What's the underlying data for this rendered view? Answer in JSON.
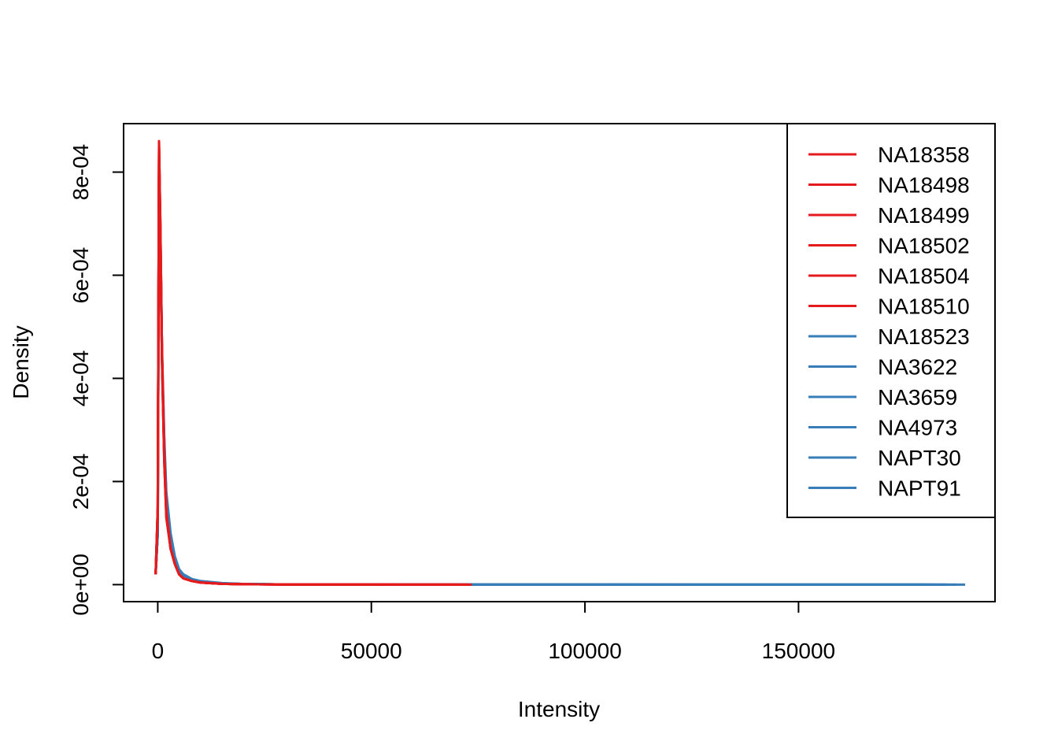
{
  "chart_data": {
    "type": "line",
    "title": "",
    "xlabel": "Intensity",
    "ylabel": "Density",
    "xlim": [
      -8000,
      196000
    ],
    "ylim": [
      -3.3e-05,
      0.000894
    ],
    "x_ticks": [
      0,
      50000,
      100000,
      150000
    ],
    "x_tick_labels": [
      "0",
      "50000",
      "100000",
      "150000"
    ],
    "y_ticks": [
      0,
      0.0002,
      0.0004,
      0.0006,
      0.0008
    ],
    "y_tick_labels": [
      "0e+00",
      "2e-04",
      "4e-04",
      "6e-04",
      "8e-04"
    ],
    "legend_position": "top-right",
    "colors": {
      "group1": "#E41A1C",
      "group2": "#377EB8"
    },
    "series": [
      {
        "name": "NA18358",
        "color": "#E41A1C",
        "x": [
          -500,
          0,
          300,
          600,
          1000,
          1500,
          2000,
          3000,
          4000,
          5000,
          6000,
          8000,
          10000,
          15000,
          20000,
          30000,
          50000,
          72000
        ],
        "y": [
          2e-05,
          0.00015,
          0.00086,
          0.0007,
          0.00045,
          0.00025,
          0.00014,
          7e-05,
          4e-05,
          2e-05,
          1.2e-05,
          7e-06,
          4e-06,
          1.5e-06,
          7e-07,
          3e-07,
          1e-07,
          5e-08
        ]
      },
      {
        "name": "NA18498",
        "color": "#E41A1C",
        "x": [
          -500,
          0,
          300,
          600,
          1000,
          1500,
          2000,
          3000,
          4000,
          5000,
          6000,
          8000,
          10000,
          15000,
          20000,
          30000,
          50000,
          70000
        ],
        "y": [
          2e-05,
          0.00014,
          0.00085,
          0.00069,
          0.00044,
          0.00025,
          0.00014,
          7e-05,
          4e-05,
          2e-05,
          1.2e-05,
          7e-06,
          4e-06,
          1.5e-06,
          7e-07,
          3e-07,
          1e-07,
          5e-08
        ]
      },
      {
        "name": "NA18499",
        "color": "#E41A1C",
        "x": [
          -500,
          0,
          300,
          600,
          1000,
          1500,
          2000,
          3000,
          4000,
          5000,
          6000,
          8000,
          10000,
          15000,
          20000,
          30000,
          50000,
          73000
        ],
        "y": [
          2e-05,
          0.00013,
          0.00084,
          0.00068,
          0.00043,
          0.00024,
          0.00013,
          7e-05,
          4e-05,
          2e-05,
          1.2e-05,
          7e-06,
          4e-06,
          1.5e-06,
          7e-07,
          3e-07,
          1e-07,
          5e-08
        ]
      },
      {
        "name": "NA18502",
        "color": "#E41A1C",
        "x": [
          -500,
          0,
          300,
          600,
          1000,
          1500,
          2000,
          3000,
          4000,
          5000,
          6000,
          8000,
          10000,
          15000,
          20000,
          30000,
          50000,
          71000
        ],
        "y": [
          2e-05,
          0.00015,
          0.00085,
          0.0007,
          0.00045,
          0.00026,
          0.00014,
          7e-05,
          4e-05,
          2e-05,
          1.2e-05,
          7e-06,
          4e-06,
          1.5e-06,
          7e-07,
          3e-07,
          1e-07,
          5e-08
        ]
      },
      {
        "name": "NA18504",
        "color": "#E41A1C",
        "x": [
          -500,
          0,
          300,
          600,
          1000,
          1500,
          2000,
          3000,
          4000,
          5000,
          6000,
          8000,
          10000,
          15000,
          20000,
          30000,
          50000,
          72500
        ],
        "y": [
          2e-05,
          0.00014,
          0.00083,
          0.00067,
          0.00043,
          0.00024,
          0.00013,
          7e-05,
          4e-05,
          2e-05,
          1.2e-05,
          7e-06,
          4e-06,
          1.5e-06,
          7e-07,
          3e-07,
          1e-07,
          5e-08
        ]
      },
      {
        "name": "NA18510",
        "color": "#E41A1C",
        "x": [
          -500,
          0,
          300,
          600,
          1000,
          1500,
          2000,
          3000,
          4000,
          5000,
          6000,
          8000,
          10000,
          15000,
          20000,
          30000,
          50000,
          73500
        ],
        "y": [
          2e-05,
          0.00015,
          0.00086,
          0.0007,
          0.00045,
          0.00025,
          0.00014,
          7e-05,
          4e-05,
          2e-05,
          1.2e-05,
          7e-06,
          4e-06,
          1.5e-06,
          7e-07,
          3e-07,
          1e-07,
          5e-08
        ]
      },
      {
        "name": "NA18523",
        "color": "#377EB8",
        "x": [
          -500,
          0,
          300,
          600,
          1000,
          1500,
          2000,
          3000,
          4000,
          5000,
          6000,
          8000,
          10000,
          15000,
          20000,
          30000,
          50000,
          100000,
          150000,
          180000
        ],
        "y": [
          2e-05,
          0.0001,
          0.0008,
          0.00066,
          0.00045,
          0.00028,
          0.00017,
          9e-05,
          5e-05,
          2.8e-05,
          1.8e-05,
          1e-05,
          6e-06,
          2.5e-06,
          1.2e-06,
          5e-07,
          2e-07,
          1e-07,
          5e-08,
          3e-08
        ]
      },
      {
        "name": "NA3622",
        "color": "#377EB8",
        "x": [
          -500,
          0,
          300,
          600,
          1000,
          1500,
          2000,
          3000,
          4000,
          5000,
          6000,
          8000,
          10000,
          15000,
          20000,
          30000,
          50000,
          100000,
          150000,
          185000
        ],
        "y": [
          2e-05,
          0.0001,
          0.00079,
          0.00065,
          0.00044,
          0.00027,
          0.00017,
          9e-05,
          5e-05,
          2.8e-05,
          1.8e-05,
          1e-05,
          6e-06,
          2.5e-06,
          1.2e-06,
          5e-07,
          2e-07,
          1e-07,
          5e-08,
          3e-08
        ]
      },
      {
        "name": "NA3659",
        "color": "#377EB8",
        "x": [
          -500,
          0,
          300,
          600,
          1000,
          1500,
          2000,
          3000,
          4000,
          5000,
          6000,
          8000,
          10000,
          15000,
          20000,
          30000,
          50000,
          100000,
          150000,
          189000
        ],
        "y": [
          2e-05,
          0.0001,
          0.00081,
          0.00067,
          0.00046,
          0.00029,
          0.00018,
          0.0001,
          5.5e-05,
          3e-05,
          2e-05,
          1.1e-05,
          7e-06,
          3e-06,
          1.3e-06,
          5e-07,
          2e-07,
          1e-07,
          5e-08,
          3e-08
        ]
      },
      {
        "name": "NA4973",
        "color": "#377EB8",
        "x": [
          -500,
          0,
          300,
          600,
          1000,
          1500,
          2000,
          3000,
          4000,
          5000,
          6000,
          8000,
          10000,
          15000,
          20000,
          30000,
          50000,
          100000,
          150000,
          182000
        ],
        "y": [
          2e-05,
          0.0001,
          0.00078,
          0.00064,
          0.00044,
          0.00027,
          0.00017,
          9e-05,
          5e-05,
          2.8e-05,
          1.8e-05,
          1e-05,
          6e-06,
          2.5e-06,
          1.2e-06,
          5e-07,
          2e-07,
          1e-07,
          5e-08,
          3e-08
        ]
      },
      {
        "name": "NAPT30",
        "color": "#377EB8",
        "x": [
          -500,
          0,
          300,
          600,
          1000,
          1500,
          2000,
          3000,
          4000,
          5000,
          6000,
          8000,
          10000,
          15000,
          20000,
          30000,
          50000,
          100000,
          150000,
          187000
        ],
        "y": [
          2e-05,
          0.0001,
          0.0008,
          0.00066,
          0.00045,
          0.00028,
          0.00017,
          9e-05,
          5e-05,
          2.8e-05,
          1.8e-05,
          1e-05,
          6e-06,
          2.5e-06,
          1.2e-06,
          5e-07,
          2e-07,
          1e-07,
          5e-08,
          3e-08
        ]
      },
      {
        "name": "NAPT91",
        "color": "#377EB8",
        "x": [
          -500,
          0,
          300,
          600,
          1000,
          1500,
          2000,
          3000,
          4000,
          5000,
          6000,
          8000,
          10000,
          15000,
          20000,
          30000,
          50000,
          100000,
          150000,
          184000
        ],
        "y": [
          2e-05,
          0.0001,
          0.00079,
          0.00065,
          0.00044,
          0.00027,
          0.00017,
          9e-05,
          5e-05,
          2.8e-05,
          1.8e-05,
          1e-05,
          6e-06,
          2.5e-06,
          1.2e-06,
          5e-07,
          2e-07,
          1e-07,
          5e-08,
          3e-08
        ]
      }
    ]
  }
}
